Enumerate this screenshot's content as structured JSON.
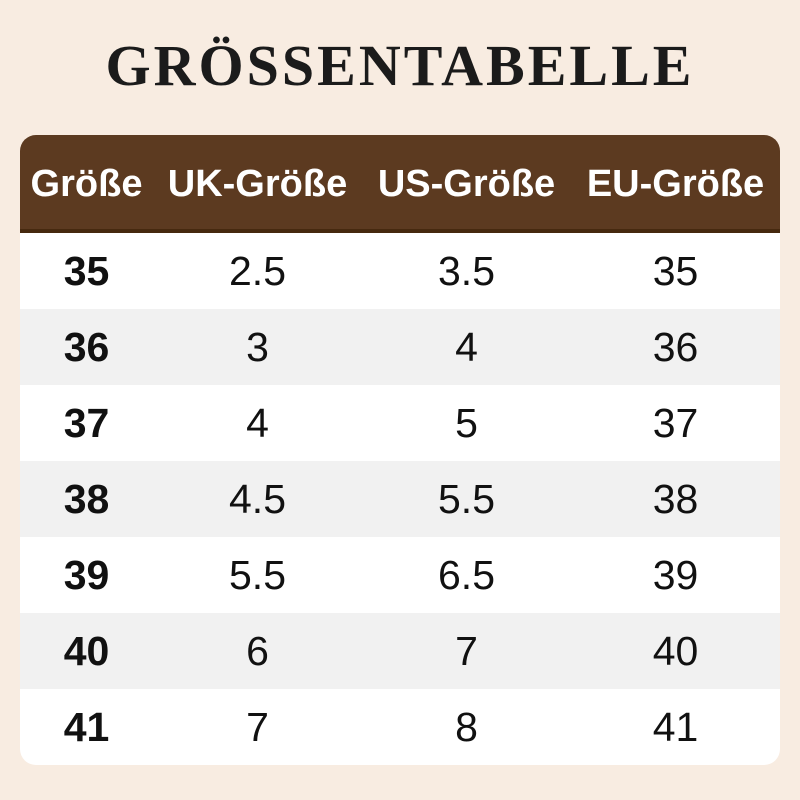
{
  "title": "GRÖSSENTABELLE",
  "theme": {
    "page-bg": "#f8ece1",
    "title-fg": "#1b1b1b",
    "header-bg": "#5c3a20",
    "header-edge": "#46290f",
    "header-fg": "#ffffff",
    "row-bg": "#ffffff",
    "row-alt-bg": "#f1f1f1",
    "cell-fg": "#111111"
  },
  "chart_data": {
    "type": "table",
    "title": "GRÖSSENTABELLE",
    "columns": [
      "Größe",
      "UK-Größe",
      "US-Größe",
      "EU-Größe"
    ],
    "rows": [
      [
        "35",
        "2.5",
        "3.5",
        "35"
      ],
      [
        "36",
        "3",
        "4",
        "36"
      ],
      [
        "37",
        "4",
        "5",
        "37"
      ],
      [
        "38",
        "4.5",
        "5.5",
        "38"
      ],
      [
        "39",
        "5.5",
        "6.5",
        "39"
      ],
      [
        "40",
        "6",
        "7",
        "40"
      ],
      [
        "41",
        "7",
        "8",
        "41"
      ]
    ],
    "layout": {
      "header_position": "top",
      "row_striping": "alternating white / light-gray, starting white",
      "first_column_bold": true,
      "corner_radius": "rounded table corners"
    }
  }
}
